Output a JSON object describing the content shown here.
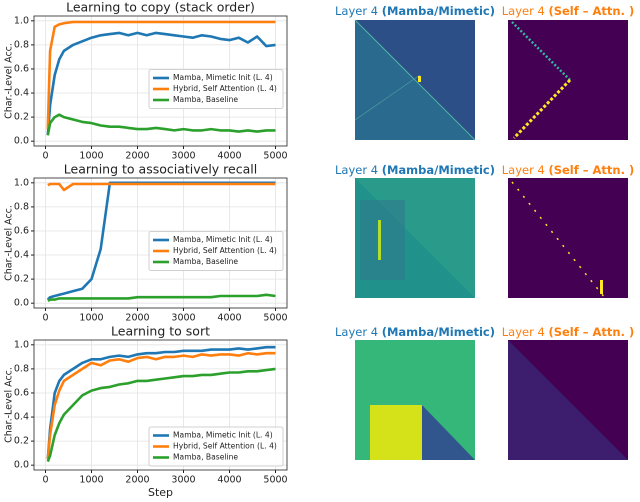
{
  "chart_data": [
    {
      "type": "line",
      "title": "Learning to copy (stack order)",
      "y_label": "Char.-Level Acc.",
      "x": [
        50,
        100,
        200,
        300,
        400,
        600,
        800,
        1000,
        1200,
        1400,
        1600,
        1800,
        2000,
        2200,
        2400,
        2600,
        2800,
        3000,
        3200,
        3400,
        3600,
        3800,
        4000,
        4200,
        4400,
        4600,
        4800,
        5000
      ],
      "series": [
        {
          "name": "Mamba, Mimetic Init (L. 4)",
          "color": "#1f77b4",
          "values": [
            0.05,
            0.3,
            0.55,
            0.68,
            0.75,
            0.8,
            0.83,
            0.86,
            0.88,
            0.89,
            0.9,
            0.88,
            0.9,
            0.88,
            0.9,
            0.89,
            0.88,
            0.87,
            0.86,
            0.88,
            0.87,
            0.85,
            0.84,
            0.86,
            0.82,
            0.87,
            0.79,
            0.8
          ]
        },
        {
          "name": "Hybrid, Self Attention (L. 4)",
          "color": "#ff7f0e",
          "values": [
            0.1,
            0.75,
            0.95,
            0.97,
            0.98,
            0.99,
            0.99,
            0.99,
            0.99,
            0.99,
            0.99,
            0.99,
            0.99,
            0.99,
            0.99,
            0.99,
            0.99,
            0.99,
            0.99,
            0.99,
            0.99,
            0.99,
            0.99,
            0.99,
            0.99,
            0.99,
            0.99,
            0.99
          ]
        },
        {
          "name": "Mamba, Baseline",
          "color": "#2ca02c",
          "values": [
            0.05,
            0.15,
            0.2,
            0.22,
            0.2,
            0.18,
            0.16,
            0.15,
            0.13,
            0.12,
            0.12,
            0.11,
            0.1,
            0.1,
            0.11,
            0.1,
            0.09,
            0.1,
            0.09,
            0.09,
            0.1,
            0.09,
            0.09,
            0.08,
            0.09,
            0.08,
            0.09,
            0.09
          ]
        }
      ],
      "xlim": [
        -250,
        5250
      ],
      "xticks": [
        0,
        1000,
        2000,
        3000,
        4000,
        5000
      ],
      "ylim": [
        -0.04,
        1.04
      ],
      "yticks": [
        {
          "value": 0,
          "label": "0.0"
        },
        {
          "value": 0.2,
          "label": "0.2"
        },
        {
          "value": 0.4,
          "label": "0.4"
        },
        {
          "value": 0.6,
          "label": "0.6"
        },
        {
          "value": 0.8,
          "label": "0.8"
        },
        {
          "value": 1,
          "label": "1.0"
        }
      ],
      "grid": true,
      "legend": "center right"
    },
    {
      "type": "line",
      "title": "Learning to associatively recall",
      "y_label": "Char.-Level Acc.",
      "x": [
        50,
        100,
        200,
        300,
        400,
        600,
        800,
        1000,
        1200,
        1400,
        1600,
        1800,
        2000,
        2200,
        2400,
        2600,
        2800,
        3000,
        3200,
        3400,
        3600,
        3800,
        4000,
        4200,
        4400,
        4600,
        4800,
        5000
      ],
      "series": [
        {
          "name": "Mamba, Mimetic Init (L. 4)",
          "color": "#1f77b4",
          "values": [
            0.03,
            0.05,
            0.06,
            0.07,
            0.08,
            0.1,
            0.12,
            0.2,
            0.45,
            1,
            1,
            1,
            1,
            1,
            1,
            1,
            1,
            1,
            1,
            1,
            1,
            1,
            1,
            1,
            1,
            1,
            1,
            1
          ]
        },
        {
          "name": "Hybrid, Self Attention (L. 4)",
          "color": "#ff7f0e",
          "values": [
            0.98,
            0.99,
            0.99,
            0.99,
            0.94,
            0.99,
            0.99,
            0.99,
            0.99,
            0.99,
            0.99,
            0.99,
            0.99,
            0.99,
            0.99,
            0.99,
            0.99,
            0.99,
            0.99,
            0.99,
            0.99,
            0.99,
            0.99,
            0.99,
            0.99,
            0.99,
            0.99,
            0.99
          ]
        },
        {
          "name": "Mamba, Baseline",
          "color": "#2ca02c",
          "values": [
            0.02,
            0.03,
            0.03,
            0.04,
            0.04,
            0.04,
            0.04,
            0.04,
            0.04,
            0.04,
            0.04,
            0.04,
            0.05,
            0.05,
            0.05,
            0.05,
            0.05,
            0.05,
            0.05,
            0.05,
            0.05,
            0.06,
            0.06,
            0.06,
            0.06,
            0.06,
            0.07,
            0.06
          ]
        }
      ],
      "xlim": [
        -250,
        5250
      ],
      "xticks": [
        0,
        1000,
        2000,
        3000,
        4000,
        5000
      ],
      "ylim": [
        -0.04,
        1.04
      ],
      "yticks": [
        {
          "value": 0,
          "label": "0.0"
        },
        {
          "value": 0.2,
          "label": "0.2"
        },
        {
          "value": 0.4,
          "label": "0.4"
        },
        {
          "value": 0.6,
          "label": "0.6"
        },
        {
          "value": 0.8,
          "label": "0.8"
        },
        {
          "value": 1,
          "label": "1.0"
        }
      ],
      "grid": true,
      "legend": "center right"
    },
    {
      "type": "line",
      "title": "Learning to sort",
      "y_label": "Char.-Level Acc.",
      "x_label": "Step",
      "x": [
        50,
        100,
        200,
        300,
        400,
        600,
        800,
        1000,
        1200,
        1400,
        1600,
        1800,
        2000,
        2200,
        2400,
        2600,
        2800,
        3000,
        3200,
        3400,
        3600,
        3800,
        4000,
        4200,
        4400,
        4600,
        4800,
        5000
      ],
      "series": [
        {
          "name": "Mamba, Mimetic Init (L. 4)",
          "color": "#1f77b4",
          "values": [
            0.05,
            0.3,
            0.6,
            0.7,
            0.75,
            0.8,
            0.85,
            0.88,
            0.88,
            0.9,
            0.91,
            0.9,
            0.92,
            0.93,
            0.93,
            0.94,
            0.94,
            0.95,
            0.95,
            0.95,
            0.96,
            0.96,
            0.96,
            0.97,
            0.96,
            0.97,
            0.98,
            0.98
          ]
        },
        {
          "name": "Hybrid, Self Attention (L. 4)",
          "color": "#ff7f0e",
          "values": [
            0.05,
            0.25,
            0.5,
            0.62,
            0.7,
            0.75,
            0.8,
            0.85,
            0.83,
            0.87,
            0.88,
            0.86,
            0.89,
            0.9,
            0.88,
            0.9,
            0.9,
            0.91,
            0.9,
            0.92,
            0.91,
            0.92,
            0.92,
            0.91,
            0.93,
            0.92,
            0.93,
            0.93
          ]
        },
        {
          "name": "Mamba, Baseline",
          "color": "#2ca02c",
          "values": [
            0.03,
            0.08,
            0.25,
            0.35,
            0.42,
            0.5,
            0.58,
            0.62,
            0.64,
            0.65,
            0.67,
            0.68,
            0.7,
            0.7,
            0.71,
            0.72,
            0.73,
            0.74,
            0.74,
            0.75,
            0.75,
            0.76,
            0.77,
            0.77,
            0.78,
            0.78,
            0.79,
            0.8
          ]
        }
      ],
      "xlim": [
        -250,
        5250
      ],
      "xticks": [
        0,
        1000,
        2000,
        3000,
        4000,
        5000
      ],
      "ylim": [
        -0.04,
        1.04
      ],
      "yticks": [
        {
          "value": 0,
          "label": "0.0"
        },
        {
          "value": 0.2,
          "label": "0.2"
        },
        {
          "value": 0.4,
          "label": "0.4"
        },
        {
          "value": 0.6,
          "label": "0.6"
        },
        {
          "value": 0.8,
          "label": "0.8"
        },
        {
          "value": 1,
          "label": "1.0"
        }
      ],
      "grid": true,
      "legend": "lower right"
    }
  ],
  "heatmaps": [
    {
      "label": "Layer 4",
      "highlight": "(Mamba/Mimetic)"
    },
    {
      "label": "Layer 4",
      "highlight": "(Self – Attn. )"
    },
    {
      "label": "Layer 4",
      "highlight": "(Mamba/Mimetic)"
    },
    {
      "label": "Layer 4",
      "highlight": "(Self – Attn. )"
    },
    {
      "label": "Layer 4",
      "highlight": "(Mamba/Mimetic)"
    },
    {
      "label": "Layer 4",
      "highlight": "(Self – Attn. )"
    }
  ]
}
